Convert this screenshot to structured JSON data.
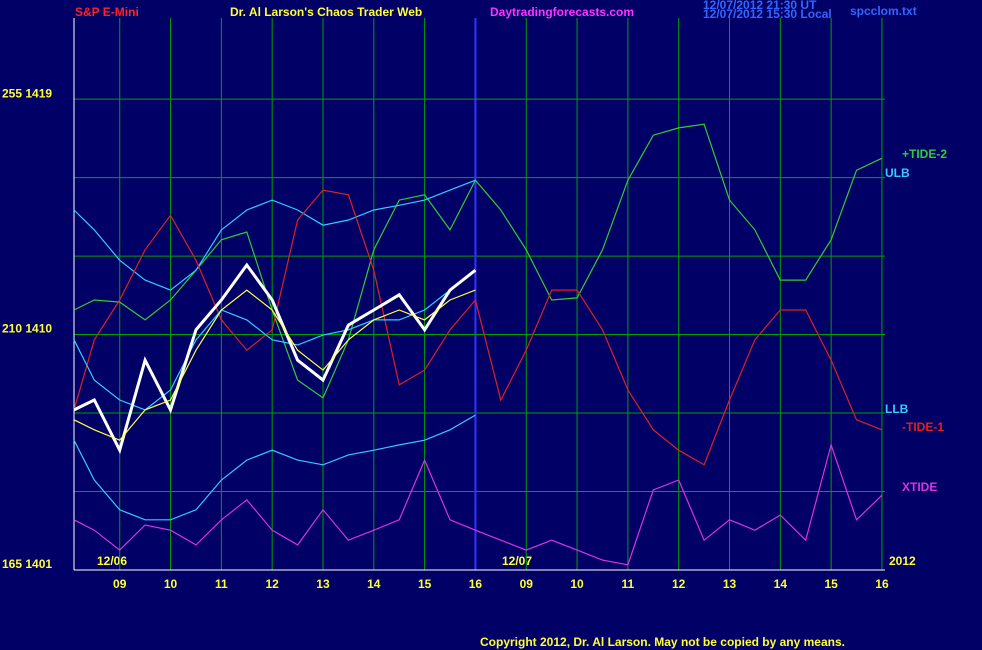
{
  "chart_data": {
    "type": "line",
    "instrument": "S&P E-Mini",
    "title": "Dr. Al Larson's Chaos Trader Web",
    "website": "Daytradingforecasts.com",
    "timestamps": [
      "12/07/2012 21:30 UT",
      "12/07/2012 15:30 Local"
    ],
    "filename": "spcclom.txt",
    "copyright": "Copyright 2012, Dr. Al Larson. May not be copied by any means.",
    "annotations": [
      "12/06",
      "12/07",
      "2012"
    ],
    "grid": true,
    "grid_color": "#00a000",
    "xlim": [
      -0.9,
      15.06
    ],
    "xticks": [
      {
        "value": 0,
        "label": "09"
      },
      {
        "value": 1,
        "label": "10"
      },
      {
        "value": 2,
        "label": "11"
      },
      {
        "value": 3,
        "label": "12"
      },
      {
        "value": 4,
        "label": "13"
      },
      {
        "value": 5,
        "label": "14"
      },
      {
        "value": 6,
        "label": "15"
      },
      {
        "value": 7,
        "label": "16"
      },
      {
        "value": 8,
        "label": "09"
      },
      {
        "value": 9,
        "label": "10"
      },
      {
        "value": 10,
        "label": "11"
      },
      {
        "value": 11,
        "label": "12"
      },
      {
        "value": 12,
        "label": "13"
      },
      {
        "value": 13,
        "label": "14"
      },
      {
        "value": 14,
        "label": "15"
      },
      {
        "value": 15,
        "label": "16"
      }
    ],
    "ylim": [
      165,
      270.5
    ],
    "yticks": [
      {
        "value": 165,
        "label": "165  1401"
      },
      {
        "value": 210,
        "label": "210  1410"
      },
      {
        "value": 255,
        "label": "255  1419"
      }
    ],
    "ygrid": [
      180,
      195,
      225,
      240
    ],
    "x": [
      -0.9,
      -0.5,
      0,
      0.5,
      1,
      1.5,
      2,
      2.5,
      3,
      3.5,
      4,
      4.5,
      5,
      5.5,
      6,
      6.5,
      7,
      7.5,
      8,
      8.5,
      9,
      9.5,
      10,
      10.5,
      11,
      11.5,
      12,
      12.5,
      13,
      13.5,
      14,
      14.5,
      15
    ],
    "series": [
      {
        "name": "+TIDE-2",
        "color": "#33cc33",
        "values": [
          214.7,
          216.6,
          216.2,
          212.8,
          216.6,
          222.3,
          228.1,
          229.6,
          214.7,
          201.3,
          197.9,
          209,
          226.2,
          235.7,
          236.7,
          230,
          239.5,
          233.8,
          226.2,
          216.6,
          217,
          226.2,
          239.5,
          248.1,
          249.5,
          250.2,
          235.7,
          230,
          220.4,
          220.4,
          228.1,
          241.4,
          243.7
        ]
      },
      {
        "name": "ULB",
        "color": "#33ccff",
        "values": [
          233.8,
          230,
          224.2,
          220.4,
          218.5,
          222.3,
          230,
          233.8,
          235.7,
          233.8,
          230.9,
          231.9,
          233.8,
          234.7,
          235.7,
          237.6,
          239.5,
          null,
          null,
          null,
          null,
          null,
          null,
          null,
          null,
          null,
          null,
          null,
          null,
          null,
          null,
          null,
          null
        ]
      },
      {
        "name": "LLB",
        "color": "#33ccff",
        "values": [
          189.8,
          182.2,
          176.5,
          174.6,
          174.6,
          176.5,
          182.2,
          186,
          187.9,
          186,
          185.1,
          187,
          187.9,
          188.9,
          189.8,
          191.8,
          194.6,
          null,
          null,
          null,
          null,
          null,
          null,
          null,
          null,
          null,
          null,
          null,
          null,
          null,
          null,
          null,
          null
        ]
      },
      {
        "name": "-TIDE-1",
        "color": "#dd2222",
        "values": [
          195.6,
          209,
          216.6,
          226.2,
          232.8,
          224.2,
          212.8,
          207,
          210.9,
          231.9,
          237.6,
          236.7,
          222.3,
          200.4,
          203.2,
          210.9,
          216.6,
          197.5,
          207,
          218.5,
          218.5,
          210.9,
          199.4,
          191.8,
          187.9,
          185.1,
          197.5,
          209,
          214.7,
          214.7,
          205.1,
          193.7,
          191.8
        ]
      },
      {
        "name": "XTIDE",
        "color": "#dd33dd",
        "values": [
          174.6,
          172.6,
          168.8,
          173.6,
          172.6,
          169.8,
          174.6,
          178.4,
          172.6,
          169.8,
          176.5,
          170.7,
          172.6,
          174.6,
          186,
          174.6,
          172.6,
          170.7,
          168.8,
          170.7,
          168.8,
          166.9,
          166,
          180.3,
          182.2,
          170.7,
          174.6,
          172.6,
          175.5,
          170.7,
          188.9,
          174.6,
          179.3
        ]
      },
      {
        "color": "#33ccff",
        "values": [
          209,
          201.3,
          197.5,
          195.6,
          199.4,
          209,
          214.7,
          212.8,
          209,
          208,
          209.9,
          210.9,
          212.8,
          212.8,
          214.7,
          218.5,
          null,
          null,
          null,
          null,
          null,
          null,
          null,
          null,
          null,
          null,
          null,
          null,
          null,
          null,
          null,
          null,
          null
        ]
      },
      {
        "color": "#ffffff",
        "values": [
          195.6,
          197.5,
          187.9,
          205.1,
          195.6,
          210.9,
          216.6,
          223.3,
          216.6,
          205.1,
          201.3,
          211.8,
          214.7,
          217.6,
          210.9,
          218.5,
          222.3,
          null,
          null,
          null,
          null,
          null,
          null,
          null,
          null,
          null,
          null,
          null,
          null,
          null,
          null,
          null,
          null
        ]
      },
      {
        "color": "#ffff44",
        "values": [
          193.7,
          191.8,
          189.8,
          195.6,
          197.5,
          207,
          214.7,
          218.5,
          214.7,
          207,
          203.2,
          209,
          212.8,
          214.7,
          212.8,
          216.6,
          218.5,
          null,
          null,
          null,
          null,
          null,
          null,
          null,
          null,
          null,
          null,
          null,
          null,
          null,
          null,
          null,
          null
        ]
      }
    ]
  }
}
